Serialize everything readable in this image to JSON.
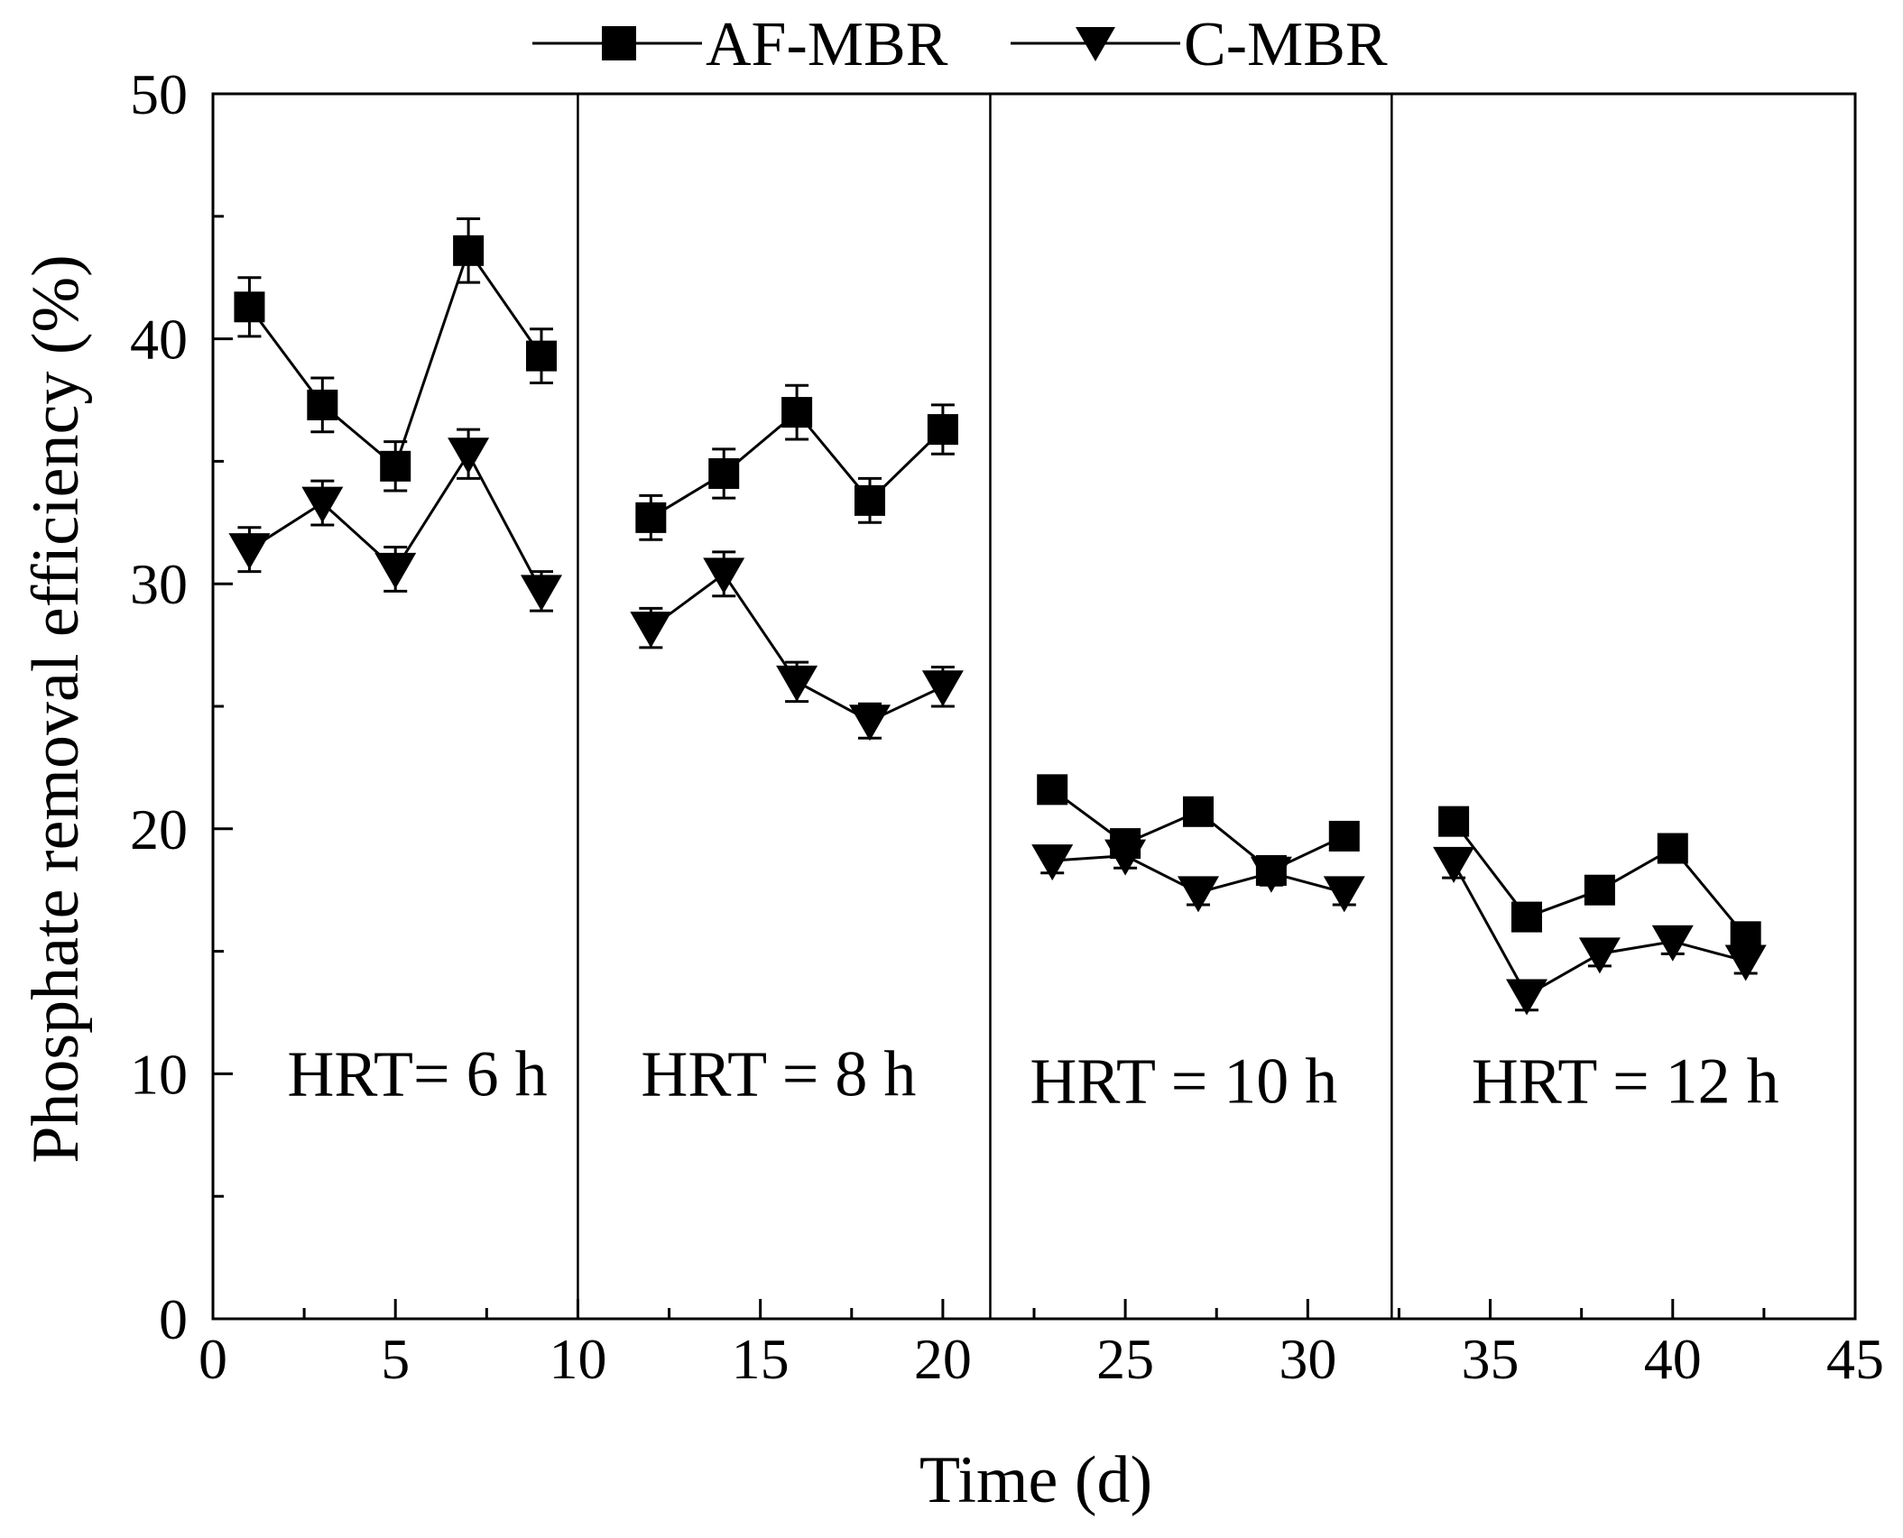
{
  "chart_data": {
    "type": "line",
    "title": "",
    "xlabel": "Time (d)",
    "ylabel": "Phosphate removal efficiency (%)",
    "xlim": [
      0,
      45
    ],
    "ylim": [
      0,
      50
    ],
    "x_major_ticks": [
      0,
      5,
      10,
      15,
      20,
      25,
      30,
      35,
      40,
      45
    ],
    "y_major_ticks": [
      0,
      10,
      20,
      30,
      40,
      50
    ],
    "x_minor_step": 2.5,
    "y_minor_step": 5,
    "grid": false,
    "legend_position": "top-center",
    "phase_dividers_x": [
      10,
      21.3,
      32.3
    ],
    "phase_labels": [
      {
        "text": "HRT= 6 h",
        "x": 5.6,
        "y": 10
      },
      {
        "text": "HRT = 8 h",
        "x": 15.5,
        "y": 10
      },
      {
        "text": "HRT = 10 h",
        "x": 26.6,
        "y": 9.7
      },
      {
        "text": "HRT = 12 h",
        "x": 38.7,
        "y": 9.7
      }
    ],
    "series": [
      {
        "name": "AF-MBR",
        "marker": "square",
        "segments": [
          {
            "x": [
              1,
              3,
              5,
              7,
              9
            ],
            "y": [
              41.3,
              37.3,
              34.8,
              43.6,
              39.3
            ],
            "err": [
              1.2,
              1.1,
              1.0,
              1.3,
              1.1
            ]
          },
          {
            "x": [
              12,
              14,
              16,
              18,
              20
            ],
            "y": [
              32.7,
              34.5,
              37.0,
              33.4,
              36.3
            ],
            "err": [
              0.9,
              1.0,
              1.1,
              0.9,
              1.0
            ]
          },
          {
            "x": [
              23,
              25,
              27,
              29,
              31
            ],
            "y": [
              21.6,
              19.4,
              20.7,
              18.3,
              19.7
            ],
            "err": [
              0.4,
              0.3,
              0.3,
              0.3,
              0.3
            ]
          },
          {
            "x": [
              34,
              36,
              38,
              40,
              42
            ],
            "y": [
              20.3,
              16.4,
              17.5,
              19.2,
              15.6
            ],
            "err": [
              0.3,
              0.3,
              0.3,
              0.3,
              0.3
            ]
          }
        ]
      },
      {
        "name": "C-MBR",
        "marker": "triangle-down",
        "segments": [
          {
            "x": [
              1,
              3,
              5,
              7,
              9
            ],
            "y": [
              31.4,
              33.3,
              30.6,
              35.3,
              29.7
            ],
            "err": [
              0.9,
              0.9,
              0.9,
              1.0,
              0.8
            ]
          },
          {
            "x": [
              12,
              14,
              16,
              18,
              20
            ],
            "y": [
              28.2,
              30.4,
              26.0,
              24.4,
              25.8
            ],
            "err": [
              0.8,
              0.9,
              0.8,
              0.7,
              0.8
            ]
          },
          {
            "x": [
              23,
              25,
              27,
              29,
              31
            ],
            "y": [
              18.7,
              18.9,
              17.4,
              18.2,
              17.4
            ],
            "err": [
              0.5,
              0.5,
              0.5,
              0.5,
              0.5
            ]
          },
          {
            "x": [
              34,
              36,
              38,
              40,
              42
            ],
            "y": [
              18.6,
              13.2,
              14.9,
              15.4,
              14.6
            ],
            "err": [
              0.6,
              0.6,
              0.5,
              0.5,
              0.5
            ]
          }
        ]
      }
    ]
  }
}
